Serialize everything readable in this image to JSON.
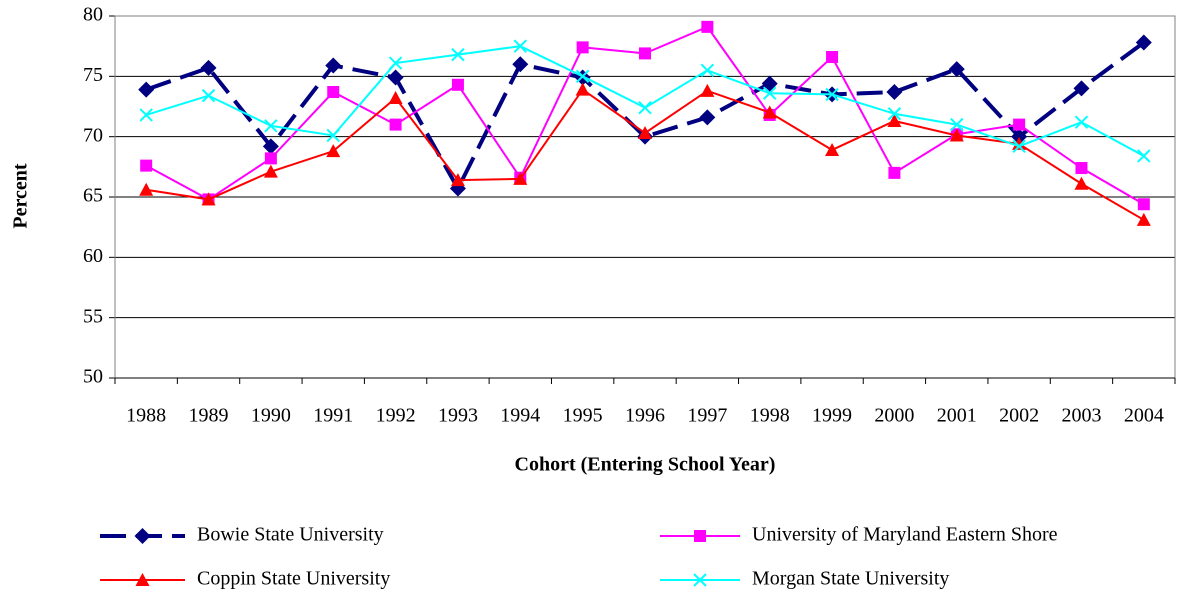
{
  "chart_data": {
    "type": "line",
    "x_label": "Cohort (Entering School Year)",
    "y_label": "Percent",
    "categories": [
      "1988",
      "1989",
      "1990",
      "1991",
      "1992",
      "1993",
      "1994",
      "1995",
      "1996",
      "1997",
      "1998",
      "1999",
      "2000",
      "2001",
      "2002",
      "2003",
      "2004"
    ],
    "series": [
      {
        "name": "Bowie State University",
        "color": "#000080",
        "marker": "diamond",
        "dashed": true,
        "values": [
          73.9,
          75.7,
          69.2,
          75.9,
          74.9,
          65.7,
          76.0,
          74.9,
          70.0,
          71.6,
          74.4,
          73.5,
          73.7,
          75.6,
          70.0,
          74.0,
          77.8
        ]
      },
      {
        "name": "University of Maryland Eastern Shore",
        "color": "#ff00ff",
        "marker": "square",
        "dashed": false,
        "values": [
          67.6,
          64.8,
          68.2,
          73.7,
          71.0,
          74.3,
          66.6,
          77.4,
          76.9,
          79.1,
          71.8,
          76.6,
          67.0,
          70.2,
          71.0,
          67.4,
          64.4
        ]
      },
      {
        "name": "Coppin State University",
        "color": "#ff0000",
        "marker": "triangle",
        "dashed": false,
        "values": [
          65.6,
          64.8,
          67.1,
          68.8,
          73.2,
          66.4,
          66.5,
          73.9,
          70.3,
          73.8,
          72.0,
          68.9,
          71.3,
          70.1,
          69.4,
          66.1,
          63.1
        ]
      },
      {
        "name": "Morgan State University",
        "color": "#00ffff",
        "marker": "x",
        "dashed": false,
        "values": [
          71.8,
          73.4,
          70.9,
          70.1,
          76.1,
          76.8,
          77.5,
          75.0,
          72.4,
          75.5,
          73.6,
          73.5,
          71.9,
          71.0,
          69.2,
          71.2,
          68.4
        ]
      }
    ],
    "ylim": [
      50,
      80
    ],
    "yticks": [
      50,
      55,
      60,
      65,
      70,
      75,
      80
    ],
    "grid": true
  }
}
